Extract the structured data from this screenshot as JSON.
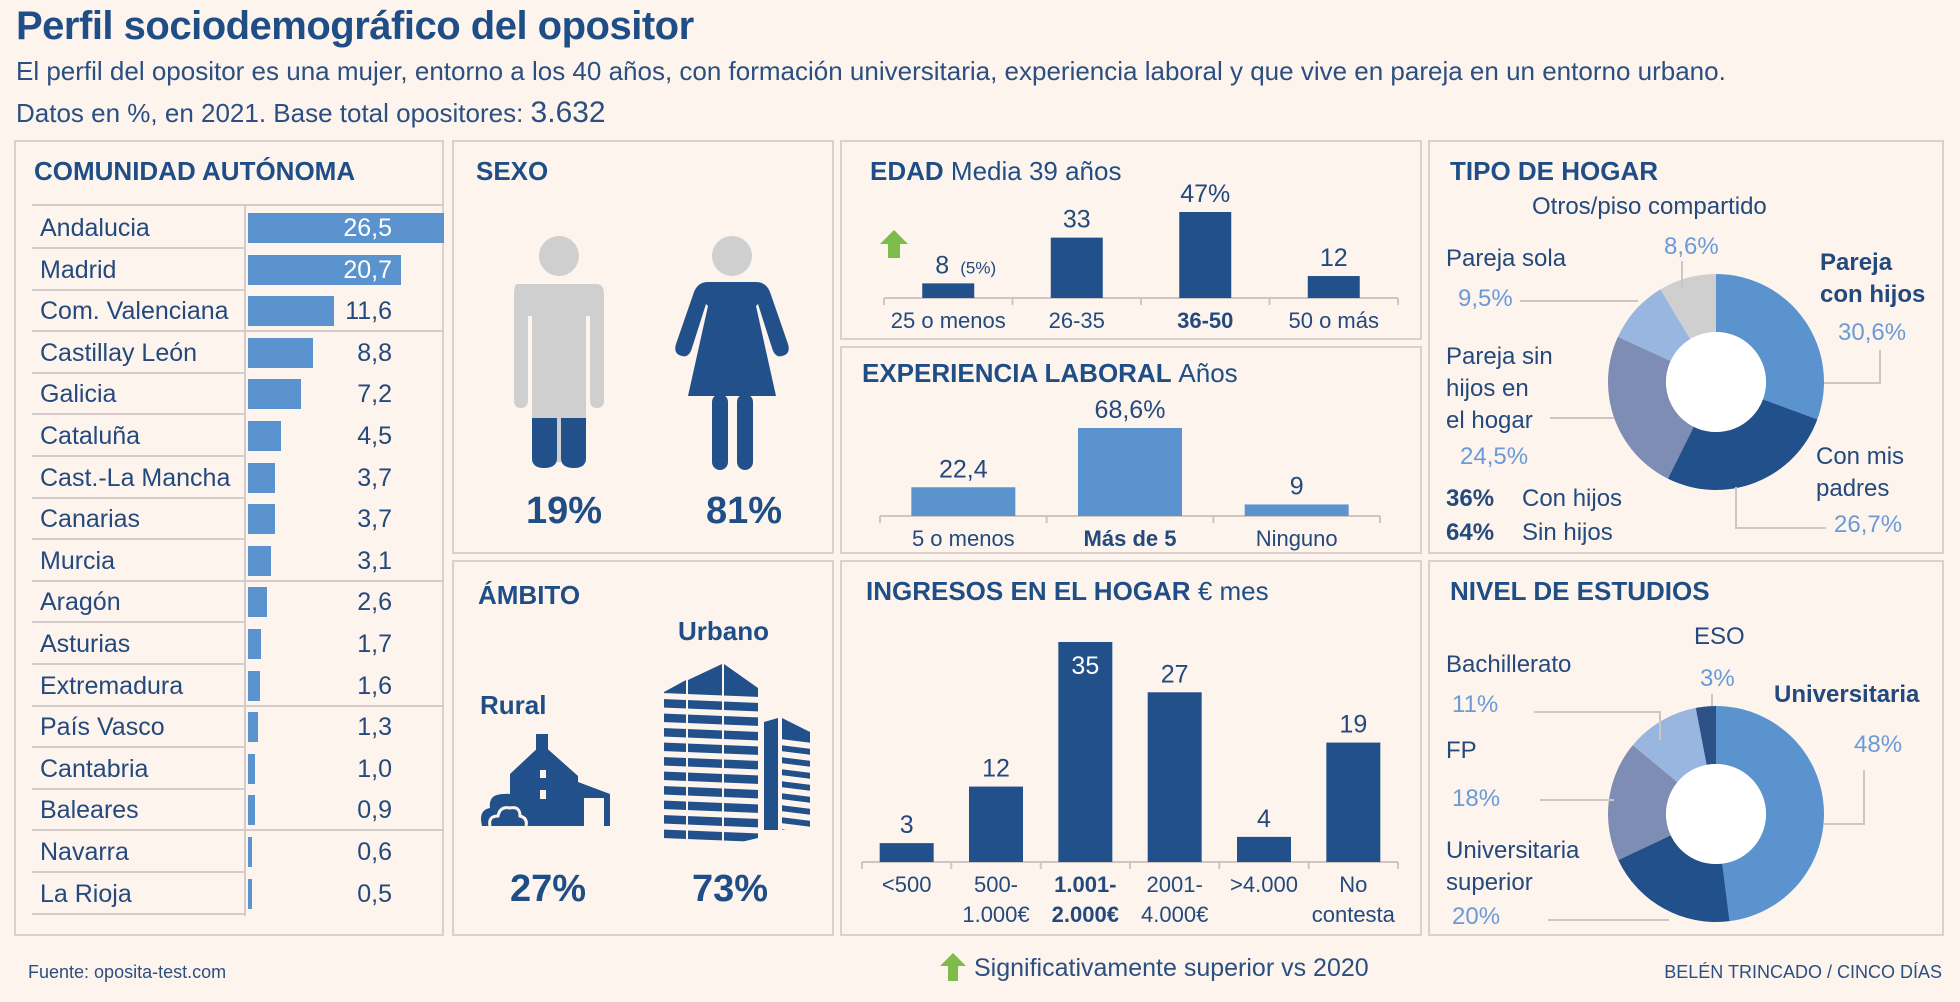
{
  "header": {
    "title": "Perfil sociodemográfico del opositor",
    "subtitle": "El perfil del opositor es una mujer, entorno a los 40 años, con formación universitaria, experiencia laboral y que vive en pareja en un entorno urbano.",
    "note_prefix": "Datos en %, en 2021. Base total opositores: ",
    "note_base": "3.632"
  },
  "colors": {
    "dark": "#21508a",
    "mid": "#5b93cf",
    "light": "#98b6e0",
    "slate": "#7e8db3",
    "grey": "#cfcfcf",
    "green": "#7dbb4a"
  },
  "chart_data": [
    {
      "type": "bar",
      "orientation": "horizontal",
      "title": "COMUNIDAD AUTÓNOMA",
      "categories": [
        "Andalucia",
        "Madrid",
        "Com. Valenciana",
        "Castillay León",
        "Galicia",
        "Cataluña",
        "Cast.-La Mancha",
        "Canarias",
        "Murcia",
        "Aragón",
        "Asturias",
        "Extremadura",
        "País Vasco",
        "Cantabria",
        "Baleares",
        "Navarra",
        "La Rioja"
      ],
      "values": [
        26.5,
        20.7,
        11.6,
        8.8,
        7.2,
        4.5,
        3.7,
        3.7,
        3.1,
        2.6,
        1.7,
        1.6,
        1.3,
        1.0,
        0.9,
        0.6,
        0.5
      ],
      "labels": [
        "26,5",
        "20,7",
        "11,6",
        "8,8",
        "7,2",
        "4,5",
        "3,7",
        "3,7",
        "3,1",
        "2,6",
        "1,7",
        "1,6",
        "1,3",
        "1,0",
        "0,9",
        "0,6",
        "0,5"
      ],
      "xlim": [
        0,
        26.5
      ]
    },
    {
      "type": "pictogram",
      "title": "SEXO",
      "categories": [
        "Hombre",
        "Mujer"
      ],
      "values": [
        19,
        81
      ],
      "labels": [
        "19%",
        "81%"
      ]
    },
    {
      "type": "pictogram",
      "title": "ÁMBITO",
      "categories": [
        "Rural",
        "Urbano"
      ],
      "values": [
        27,
        73
      ],
      "labels": [
        "27%",
        "73%"
      ]
    },
    {
      "type": "bar",
      "title": "EDAD",
      "subtitle": "Media 39 años",
      "categories": [
        "25 o menos",
        "26-35",
        "36-50",
        "50 o más"
      ],
      "values": [
        8,
        33,
        47,
        12
      ],
      "labels": [
        "8",
        "33",
        "47%",
        "12"
      ],
      "extra_label": "(5%)",
      "highlight": "36-50",
      "ylim": [
        0,
        47
      ]
    },
    {
      "type": "bar",
      "title": "EXPERIENCIA LABORAL",
      "subtitle": "Años",
      "categories": [
        "5 o menos",
        "Más de 5",
        "Ninguno"
      ],
      "values": [
        22.4,
        68.6,
        9
      ],
      "labels": [
        "22,4",
        "68,6%",
        "9"
      ],
      "highlight": "Más de 5",
      "ylim": [
        0,
        68.6
      ]
    },
    {
      "type": "bar",
      "title": "INGRESOS EN EL HOGAR",
      "subtitle": "€ mes",
      "categories": [
        [
          "<500"
        ],
        [
          "500-",
          "1.000€"
        ],
        [
          "1.001-",
          "2.000€"
        ],
        [
          "2001-",
          "4.000€"
        ],
        [
          ">4.000"
        ],
        [
          "No",
          "contesta"
        ]
      ],
      "values": [
        3,
        12,
        35,
        27,
        4,
        19
      ],
      "labels": [
        "3",
        "12",
        "35",
        "27",
        "4",
        "19"
      ],
      "highlight_index": 2,
      "ylim": [
        0,
        35
      ]
    },
    {
      "type": "pie",
      "title": "TIPO DE HOGAR",
      "slices": [
        {
          "name": [
            "Pareja",
            "con hijos"
          ],
          "value": 30.6,
          "label": "30,6%",
          "color": "#5b93cf",
          "bold": true
        },
        {
          "name": [
            "Con mis",
            "padres"
          ],
          "value": 26.7,
          "label": "26,7%",
          "color": "#21508a"
        },
        {
          "name": [
            "Pareja sin",
            "hijos en",
            "el hogar"
          ],
          "value": 24.5,
          "label": "24,5%",
          "color": "#7e8db3"
        },
        {
          "name": [
            "Pareja sola"
          ],
          "value": 9.5,
          "label": "9,5%",
          "color": "#98b6e0"
        },
        {
          "name": [
            "Otros/piso compartido"
          ],
          "value": 8.6,
          "label": "8,6%",
          "color": "#cfcfcf"
        }
      ],
      "summary": [
        {
          "pct": "36%",
          "text": "Con hijos"
        },
        {
          "pct": "64%",
          "text": "Sin hijos"
        }
      ]
    },
    {
      "type": "pie",
      "title": "NIVEL DE ESTUDIOS",
      "slices": [
        {
          "name": [
            "Universitaria"
          ],
          "value": 48,
          "label": "48%",
          "color": "#5b93cf",
          "bold": true
        },
        {
          "name": [
            "Universitaria",
            "superior"
          ],
          "value": 20,
          "label": "20%",
          "color": "#21508a"
        },
        {
          "name": [
            "FP"
          ],
          "value": 18,
          "label": "18%",
          "color": "#7e8db3"
        },
        {
          "name": [
            "Bachillerato"
          ],
          "value": 11,
          "label": "11%",
          "color": "#98b6e0"
        },
        {
          "name": [
            "ESO"
          ],
          "value": 3,
          "label": "3%",
          "color": "#2d5288"
        }
      ]
    }
  ],
  "footer": {
    "source": "Fuente: oposita-test.com",
    "legend": "Significativamente superior vs 2020",
    "credit": "BELÉN TRINCADO / CINCO DÍAS"
  }
}
